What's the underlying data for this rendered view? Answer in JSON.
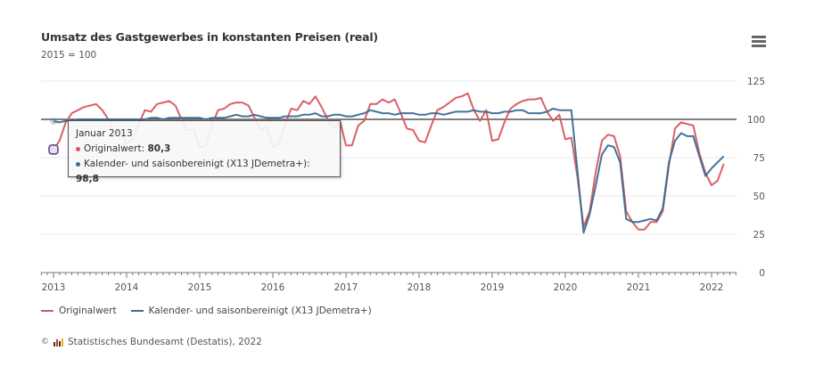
{
  "header": {
    "title": "Umsatz des Gastgewerbes in konstanten Preisen (real)",
    "subtitle": "2015 = 100",
    "menu_icon": "hamburger-menu-icon"
  },
  "colors": {
    "original": "#d9575e",
    "adjusted": "#3a6b94",
    "reference_line": "#333333",
    "grid": "#e9e9e9"
  },
  "tooltip": {
    "date": "Januar 2013",
    "rows": [
      {
        "label": "Originalwert:",
        "value": "80,3"
      },
      {
        "label": "Kalender- und saisonbereinigt (X13 JDemetra+):",
        "value": "98,8"
      }
    ]
  },
  "legend": [
    {
      "label": "Originalwert"
    },
    {
      "label": "Kalender- und saisonbereinigt (X13 JDemetra+)"
    }
  ],
  "credits": {
    "copyright": "©",
    "text": "Statistisches Bundesamt (Destatis), 2022"
  },
  "chart_data": {
    "type": "line",
    "title": "Umsatz des Gastgewerbes in konstanten Preisen (real)",
    "subtitle": "2015 = 100",
    "xlabel": "",
    "ylabel": "",
    "x_start": "2013-01",
    "x_frequency": "monthly",
    "x_ticks": [
      "2013",
      "2014",
      "2015",
      "2016",
      "2017",
      "2018",
      "2019",
      "2020",
      "2021",
      "2022"
    ],
    "y_ticks": [
      0,
      25,
      50,
      75,
      100,
      125
    ],
    "ylim": [
      0,
      130
    ],
    "y_axis_position": "right",
    "reference_line": 100,
    "grid": true,
    "legend_position": "bottom-left",
    "highlighted_point": {
      "date": "2013-01",
      "series": "Originalwert"
    },
    "series": [
      {
        "name": "Originalwert",
        "values": [
          80.3,
          86,
          98,
          104,
          106,
          108,
          109,
          110,
          106,
          100,
          92,
          92,
          84,
          87,
          97,
          106,
          105,
          110,
          111,
          112,
          109,
          100,
          93,
          93,
          82,
          83,
          96,
          106,
          107,
          110,
          111,
          111,
          109,
          101,
          93,
          95,
          82,
          84,
          97,
          107,
          106,
          112,
          110,
          115,
          108,
          100,
          94,
          99,
          83,
          83,
          96,
          99,
          110,
          110,
          113,
          111,
          113,
          104,
          94,
          93,
          86,
          85,
          96,
          106,
          108,
          111,
          114,
          115,
          117,
          106,
          99,
          106,
          86,
          87,
          98,
          107,
          110,
          112,
          113,
          113,
          114,
          105,
          99,
          103,
          87,
          88,
          62,
          30,
          40,
          66,
          86,
          90,
          89,
          76,
          40,
          33,
          28,
          28,
          33,
          33,
          40,
          70,
          94,
          98,
          97,
          96,
          78,
          65,
          57,
          60,
          71
        ]
      },
      {
        "name": "Kalender- und saisonbereinigt (X13 JDemetra+)",
        "values": [
          98.8,
          98,
          99,
          99,
          100,
          100,
          100,
          100,
          100,
          100,
          100,
          100,
          100,
          100,
          100,
          100,
          101,
          101,
          100,
          101,
          101,
          101,
          101,
          101,
          101,
          100,
          101,
          101,
          101,
          102,
          103,
          102,
          102,
          103,
          102,
          101,
          101,
          101,
          102,
          102,
          102,
          103,
          103,
          104,
          102,
          102,
          103,
          103,
          102,
          102,
          103,
          104,
          106,
          105,
          104,
          104,
          103,
          104,
          104,
          104,
          103,
          103,
          104,
          104,
          103,
          104,
          105,
          105,
          105,
          106,
          105,
          105,
          104,
          104,
          105,
          105,
          106,
          106,
          104,
          104,
          104,
          105,
          107,
          106,
          106,
          106,
          66,
          26,
          38,
          57,
          77,
          83,
          82,
          72,
          35,
          33,
          33,
          34,
          35,
          34,
          42,
          72,
          86,
          91,
          89,
          89,
          76,
          63,
          68,
          72,
          76
        ]
      }
    ]
  }
}
